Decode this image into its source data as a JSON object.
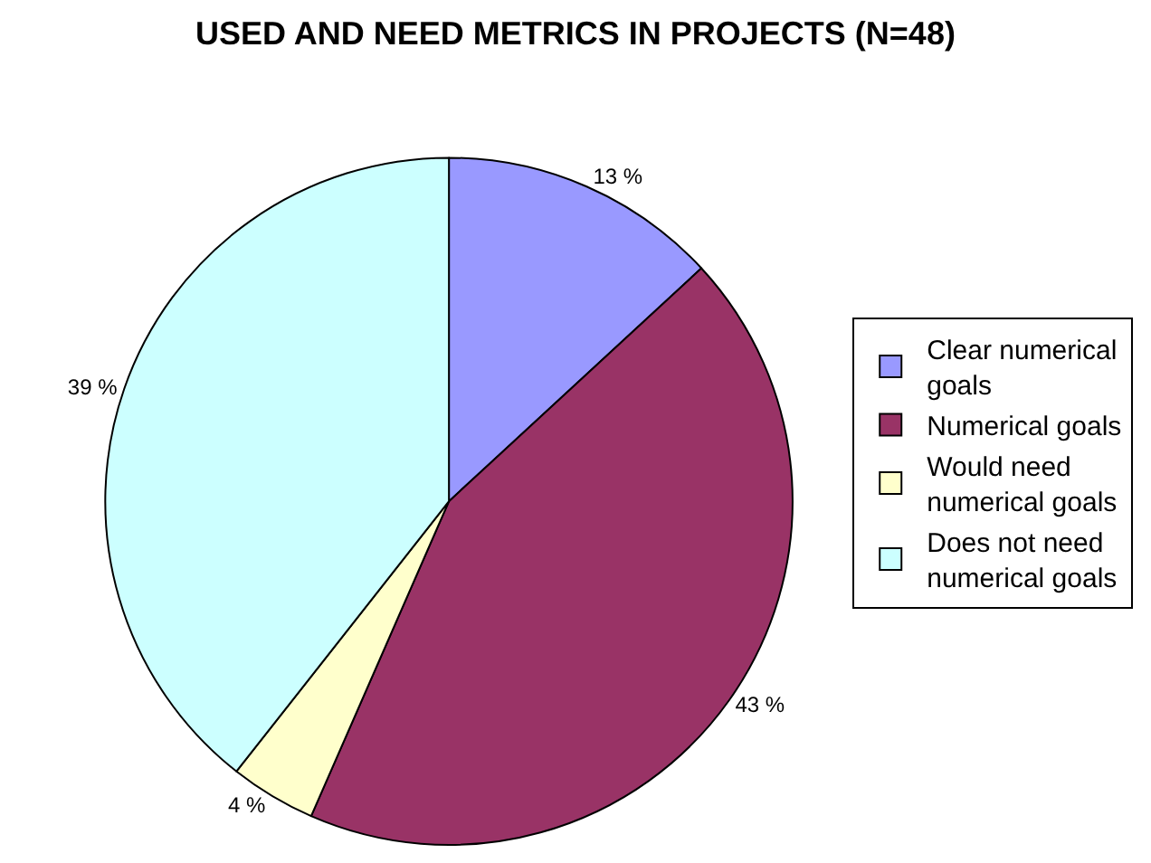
{
  "chart_data": {
    "type": "pie",
    "title": "USED AND NEED METRICS IN PROJECTS (N=48)",
    "categories": [
      "Clear numerical goals",
      "Numerical goals",
      "Would need numerical goals",
      "Does not need numerical goals"
    ],
    "values": [
      13,
      43,
      4,
      39
    ],
    "colors": [
      "#9999ff",
      "#993366",
      "#ffffcc",
      "#ccffff"
    ],
    "value_labels": [
      "13 %",
      "43 %",
      "4 %",
      "39 %"
    ],
    "legend": "right"
  }
}
